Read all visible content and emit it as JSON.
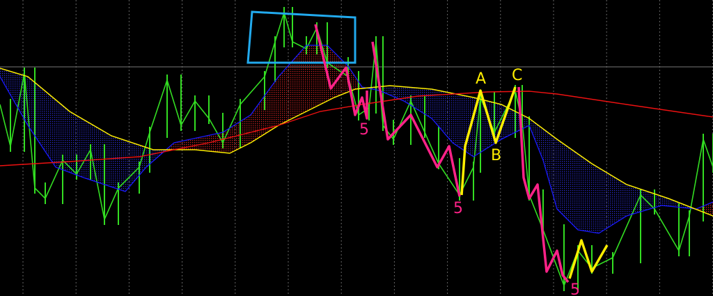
{
  "chart_data": {
    "type": "line",
    "title": "",
    "xlabel": "",
    "ylabel": "",
    "grid": true,
    "xlim": [
      0,
      256
    ],
    "ylim": [
      0,
      425
    ],
    "colors": {
      "background": "#000000",
      "price": "#33dd22",
      "price_zigzag": "#aa1111",
      "ma_fast": "#1a1aff",
      "ma_mid": "#ffee00",
      "ma_slow": "#ee1111",
      "fill_bull": "#cc2222",
      "fill_bear": "#2222bb",
      "grid": "#666666",
      "hline": "#777777"
    },
    "hline": 329,
    "series": [
      {
        "role": "price",
        "points": [
          [
            0,
            275
          ],
          [
            3.75,
            215
          ],
          [
            8.75,
            320
          ],
          [
            12.5,
            155
          ],
          [
            16.25,
            140
          ],
          [
            22.5,
            195
          ],
          [
            27.5,
            175
          ],
          [
            32.5,
            210
          ],
          [
            37.5,
            110
          ],
          [
            42.5,
            155
          ],
          [
            50,
            185
          ],
          [
            53.75,
            235
          ],
          [
            60,
            310
          ],
          [
            65,
            245
          ],
          [
            70,
            280
          ],
          [
            75,
            255
          ],
          [
            80,
            220
          ],
          [
            86.25,
            275
          ],
          [
            95,
            315
          ],
          [
            98.75,
            365
          ],
          [
            102,
            407
          ],
          [
            105,
            365
          ],
          [
            110,
            355
          ],
          [
            113.75,
            385
          ],
          [
            117.5,
            335
          ],
          [
            125,
            315
          ],
          [
            128.75,
            260
          ],
          [
            132.5,
            270
          ],
          [
            135,
            365
          ],
          [
            137.5,
            245
          ],
          [
            141.25,
            225
          ],
          [
            147.5,
            280
          ],
          [
            152.5,
            235
          ],
          [
            157.5,
            190
          ],
          [
            165,
            145
          ],
          [
            170,
            185
          ],
          [
            172.5,
            285
          ],
          [
            177.5,
            235
          ],
          [
            185,
            295
          ],
          [
            187.5,
            250
          ],
          [
            190,
            145
          ],
          [
            195,
            95
          ],
          [
            202.5,
            15
          ],
          [
            207.5,
            65
          ],
          [
            212.5,
            40
          ],
          [
            220,
            55
          ],
          [
            230,
            145
          ],
          [
            235,
            125
          ],
          [
            243.75,
            65
          ],
          [
            247.5,
            115
          ],
          [
            252.5,
            225
          ],
          [
            256,
            185
          ]
        ]
      },
      {
        "role": "ma_fast",
        "points": [
          [
            0,
            315
          ],
          [
            10,
            245
          ],
          [
            20,
            185
          ],
          [
            30,
            170
          ],
          [
            45,
            150
          ],
          [
            52.5,
            185
          ],
          [
            62.5,
            220
          ],
          [
            80,
            235
          ],
          [
            90,
            260
          ],
          [
            100,
            315
          ],
          [
            110,
            360
          ],
          [
            117.5,
            360
          ],
          [
            125,
            330
          ],
          [
            130,
            300
          ],
          [
            136.25,
            295
          ],
          [
            145,
            280
          ],
          [
            155,
            255
          ],
          [
            162.5,
            220
          ],
          [
            170,
            200
          ],
          [
            180,
            225
          ],
          [
            190,
            245
          ],
          [
            195,
            195
          ],
          [
            200,
            125
          ],
          [
            207.5,
            95
          ],
          [
            215,
            90
          ],
          [
            225,
            115
          ],
          [
            237.5,
            130
          ],
          [
            250,
            125
          ],
          [
            256,
            135
          ]
        ]
      },
      {
        "role": "ma_mid",
        "points": [
          [
            0,
            327
          ],
          [
            10,
            315
          ],
          [
            25,
            265
          ],
          [
            40,
            230
          ],
          [
            55,
            210
          ],
          [
            70,
            210
          ],
          [
            82.5,
            205
          ],
          [
            90,
            220
          ],
          [
            100,
            245
          ],
          [
            110,
            265
          ],
          [
            120,
            285
          ],
          [
            127.5,
            297
          ],
          [
            140,
            302
          ],
          [
            155,
            297
          ],
          [
            170,
            285
          ],
          [
            180,
            275
          ],
          [
            190,
            255
          ],
          [
            200,
            225
          ],
          [
            212.5,
            190
          ],
          [
            225,
            160
          ],
          [
            240,
            140
          ],
          [
            256,
            115
          ]
        ]
      },
      {
        "role": "ma_slow",
        "points": [
          [
            0,
            187
          ],
          [
            25,
            193
          ],
          [
            50,
            200
          ],
          [
            75,
            220
          ],
          [
            100,
            245
          ],
          [
            115,
            265
          ],
          [
            130,
            275
          ],
          [
            150,
            287
          ],
          [
            175,
            293
          ],
          [
            190,
            294
          ],
          [
            200,
            290
          ],
          [
            225,
            275
          ],
          [
            256,
            257
          ]
        ]
      }
    ],
    "annotations": {
      "box": [
        [
          90.5,
          408
        ],
        [
          127.5,
          400
        ],
        [
          127.5,
          335
        ],
        [
          89,
          335
        ]
      ],
      "pink_lines": [
        [
          [
            113.25,
            390
          ],
          [
            118.75,
            298
          ],
          [
            124.25,
            328
          ],
          [
            127.5,
            260
          ],
          [
            130,
            285
          ],
          [
            131.75,
            255
          ],
          [
            131.75,
            295
          ]
        ],
        [
          [
            133.75,
            365
          ],
          [
            139.25,
            225
          ],
          [
            147.5,
            260
          ],
          [
            157,
            185
          ],
          [
            161.25,
            215
          ],
          [
            165,
            143
          ]
        ],
        [
          [
            186.25,
            300
          ],
          [
            188,
            170
          ],
          [
            190,
            140
          ],
          [
            193,
            160
          ],
          [
            196.25,
            35
          ],
          [
            200,
            65
          ],
          [
            202,
            30
          ],
          [
            204,
            20
          ]
        ]
      ],
      "yellow_lines": [
        [
          [
            165.75,
            145
          ],
          [
            167,
            215
          ],
          [
            172.5,
            295
          ],
          [
            178,
            220
          ],
          [
            185,
            300
          ]
        ],
        [
          [
            204.5,
            25
          ],
          [
            208.75,
            80
          ],
          [
            212.5,
            35
          ],
          [
            218,
            73
          ]
        ]
      ],
      "labels": [
        {
          "text": "5",
          "color": "#ff2288",
          "at": [
            130.75,
            240
          ]
        },
        {
          "text": "5",
          "color": "#ff2288",
          "at": [
            164.5,
            127
          ]
        },
        {
          "text": "5",
          "color": "#ff2288",
          "at": [
            206.5,
            10
          ]
        },
        {
          "text": "A",
          "color": "#ffee00",
          "at": [
            172.5,
            313
          ]
        },
        {
          "text": "B",
          "color": "#ffee00",
          "at": [
            178,
            203
          ]
        },
        {
          "text": "C",
          "color": "#ffee00",
          "at": [
            185.5,
            318
          ]
        }
      ]
    }
  }
}
